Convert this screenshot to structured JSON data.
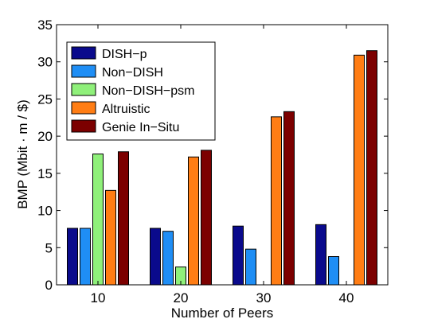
{
  "chart_data": {
    "type": "bar",
    "xlabel": "Number of Peers",
    "ylabel": "BMP (Mbit · m / $)",
    "categories": [
      "10",
      "20",
      "30",
      "40"
    ],
    "ylim": [
      0,
      35
    ],
    "yticks": [
      0,
      5,
      10,
      15,
      20,
      25,
      30,
      35
    ],
    "grid": false,
    "legend_position": "top-left",
    "series": [
      {
        "name": "DISH−p",
        "color": "#0a0a8c",
        "values": [
          7.6,
          7.6,
          7.9,
          8.1
        ]
      },
      {
        "name": "Non−DISH",
        "color": "#1f8ef5",
        "values": [
          7.6,
          7.2,
          4.8,
          3.8
        ]
      },
      {
        "name": "Non−DISH−psm",
        "color": "#8ff07a",
        "values": [
          17.6,
          2.4,
          0,
          0
        ]
      },
      {
        "name": "Altruistic",
        "color": "#ff7d14",
        "values": [
          12.7,
          17.2,
          22.6,
          30.9
        ]
      },
      {
        "name": "Genie In−Situ",
        "color": "#7c0000",
        "values": [
          17.9,
          18.1,
          23.3,
          31.5
        ]
      }
    ]
  }
}
